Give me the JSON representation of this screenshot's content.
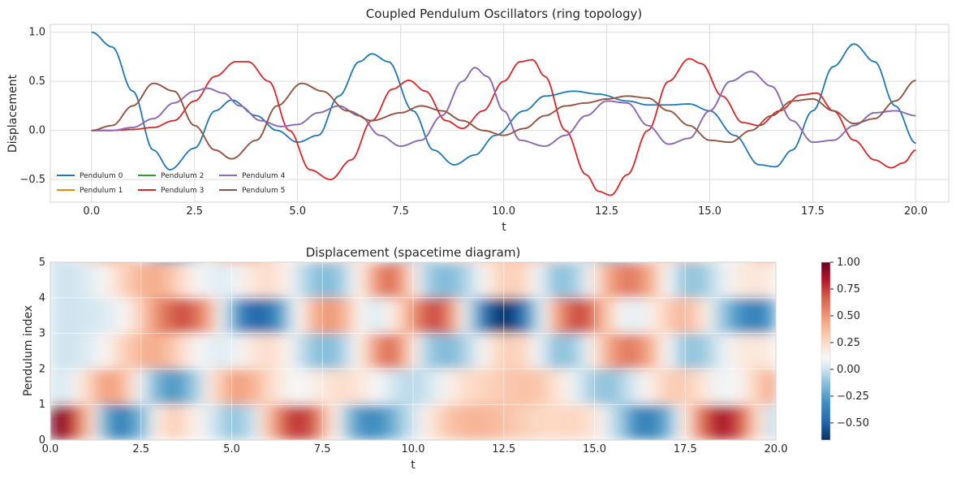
{
  "chart_data": [
    {
      "type": "line",
      "title": "Coupled Pendulum Oscillators (ring topology)",
      "xlabel": "t",
      "ylabel": "Displacement",
      "xlim": [
        -1.0,
        20.8
      ],
      "ylim": [
        -0.73,
        1.08
      ],
      "xticks": [
        0.0,
        2.5,
        5.0,
        7.5,
        10.0,
        12.5,
        15.0,
        17.5,
        20.0
      ],
      "xtick_labels": [
        "0.0",
        "2.5",
        "5.0",
        "7.5",
        "10.0",
        "12.5",
        "15.0",
        "17.5",
        "20.0"
      ],
      "yticks": [
        -0.5,
        0.0,
        0.5,
        1.0
      ],
      "ytick_labels": [
        "−0.5",
        "0.0",
        "0.5",
        "1.0"
      ],
      "grid": true,
      "legend_location": "bottom-left",
      "series": [
        {
          "name": "Pendulum 0",
          "color": "#1f77b4",
          "points": [
            [
              0,
              1.0
            ],
            [
              0.5,
              0.85
            ],
            [
              1.0,
              0.4
            ],
            [
              1.5,
              -0.2
            ],
            [
              1.9,
              -0.4
            ],
            [
              2.5,
              -0.18
            ],
            [
              3.0,
              0.2
            ],
            [
              3.4,
              0.31
            ],
            [
              4.0,
              0.15
            ],
            [
              4.5,
              0.0
            ],
            [
              5.0,
              -0.12
            ],
            [
              5.5,
              -0.05
            ],
            [
              6.0,
              0.35
            ],
            [
              6.5,
              0.7
            ],
            [
              6.8,
              0.78
            ],
            [
              7.2,
              0.7
            ],
            [
              7.8,
              0.2
            ],
            [
              8.3,
              -0.2
            ],
            [
              8.8,
              -0.35
            ],
            [
              9.3,
              -0.25
            ],
            [
              9.8,
              -0.05
            ],
            [
              10.5,
              0.2
            ],
            [
              11.0,
              0.35
            ],
            [
              11.7,
              0.4
            ],
            [
              12.3,
              0.37
            ],
            [
              13.0,
              0.3
            ],
            [
              13.5,
              0.26
            ],
            [
              14.0,
              0.26
            ],
            [
              14.5,
              0.27
            ],
            [
              15.0,
              0.2
            ],
            [
              15.6,
              -0.05
            ],
            [
              16.2,
              -0.35
            ],
            [
              16.6,
              -0.37
            ],
            [
              17.0,
              -0.2
            ],
            [
              17.5,
              0.2
            ],
            [
              18.0,
              0.65
            ],
            [
              18.5,
              0.88
            ],
            [
              19.0,
              0.7
            ],
            [
              19.5,
              0.25
            ],
            [
              20.0,
              -0.13
            ]
          ]
        },
        {
          "name": "Pendulum 1",
          "color": "#ff7f0e",
          "points": [
            [
              0,
              0.0
            ],
            [
              0.5,
              0.05
            ],
            [
              1.0,
              0.25
            ],
            [
              1.5,
              0.48
            ],
            [
              2.0,
              0.4
            ],
            [
              2.5,
              0.05
            ],
            [
              3.0,
              -0.2
            ],
            [
              3.4,
              -0.29
            ],
            [
              4.0,
              -0.1
            ],
            [
              4.5,
              0.25
            ],
            [
              5.1,
              0.48
            ],
            [
              5.6,
              0.4
            ],
            [
              6.2,
              0.2
            ],
            [
              6.8,
              0.1
            ],
            [
              7.5,
              0.18
            ],
            [
              8.0,
              0.25
            ],
            [
              8.5,
              0.2
            ],
            [
              9.0,
              0.1
            ],
            [
              9.5,
              0.0
            ],
            [
              10.0,
              -0.05
            ],
            [
              10.5,
              0.02
            ],
            [
              11.0,
              0.15
            ],
            [
              11.5,
              0.25
            ],
            [
              12.0,
              0.28
            ],
            [
              12.5,
              0.32
            ],
            [
              13.0,
              0.35
            ],
            [
              13.5,
              0.33
            ],
            [
              14.0,
              0.2
            ],
            [
              14.5,
              0.05
            ],
            [
              15.0,
              -0.1
            ],
            [
              15.5,
              -0.12
            ],
            [
              16.0,
              0.0
            ],
            [
              16.5,
              0.15
            ],
            [
              17.0,
              0.3
            ],
            [
              17.5,
              0.32
            ],
            [
              18.0,
              0.2
            ],
            [
              18.5,
              0.07
            ],
            [
              19.0,
              0.12
            ],
            [
              19.5,
              0.3
            ],
            [
              20.0,
              0.51
            ]
          ]
        },
        {
          "name": "Pendulum 2",
          "color": "#2ca02c",
          "points": [
            [
              0,
              0.0
            ],
            [
              0.5,
              0.0
            ],
            [
              1.0,
              0.03
            ],
            [
              1.5,
              0.12
            ],
            [
              2.0,
              0.28
            ],
            [
              2.5,
              0.4
            ],
            [
              2.8,
              0.43
            ],
            [
              3.2,
              0.38
            ],
            [
              3.6,
              0.25
            ],
            [
              4.1,
              0.1
            ],
            [
              4.6,
              0.04
            ],
            [
              5.0,
              0.06
            ],
            [
              5.5,
              0.18
            ],
            [
              6.0,
              0.25
            ],
            [
              6.5,
              0.15
            ],
            [
              7.0,
              -0.05
            ],
            [
              7.5,
              -0.16
            ],
            [
              8.0,
              -0.1
            ],
            [
              8.5,
              0.15
            ],
            [
              9.0,
              0.5
            ],
            [
              9.3,
              0.64
            ],
            [
              9.6,
              0.55
            ],
            [
              10.0,
              0.2
            ],
            [
              10.4,
              -0.1
            ],
            [
              11.0,
              -0.16
            ],
            [
              11.5,
              -0.05
            ],
            [
              12.0,
              0.15
            ],
            [
              12.5,
              0.3
            ],
            [
              13.0,
              0.28
            ],
            [
              13.5,
              0.05
            ],
            [
              14.0,
              -0.14
            ],
            [
              14.5,
              -0.08
            ],
            [
              15.0,
              0.2
            ],
            [
              15.5,
              0.5
            ],
            [
              16.0,
              0.6
            ],
            [
              16.5,
              0.45
            ],
            [
              17.0,
              0.1
            ],
            [
              17.5,
              -0.12
            ],
            [
              18.0,
              -0.1
            ],
            [
              18.5,
              0.05
            ],
            [
              19.0,
              0.18
            ],
            [
              19.5,
              0.2
            ],
            [
              20.0,
              0.15
            ]
          ]
        },
        {
          "name": "Pendulum 3",
          "color": "#d62728",
          "points": [
            [
              0,
              0.0
            ],
            [
              0.5,
              0.0
            ],
            [
              1.0,
              0.01
            ],
            [
              1.5,
              0.03
            ],
            [
              2.0,
              0.1
            ],
            [
              2.5,
              0.3
            ],
            [
              3.0,
              0.55
            ],
            [
              3.5,
              0.7
            ],
            [
              3.8,
              0.7
            ],
            [
              4.3,
              0.5
            ],
            [
              4.8,
              0.0
            ],
            [
              5.3,
              -0.4
            ],
            [
              5.8,
              -0.5
            ],
            [
              6.3,
              -0.3
            ],
            [
              6.8,
              0.1
            ],
            [
              7.3,
              0.42
            ],
            [
              7.7,
              0.51
            ],
            [
              8.1,
              0.4
            ],
            [
              8.6,
              0.1
            ],
            [
              9.0,
              0.02
            ],
            [
              9.5,
              0.2
            ],
            [
              10.0,
              0.5
            ],
            [
              10.4,
              0.7
            ],
            [
              10.7,
              0.72
            ],
            [
              11.0,
              0.55
            ],
            [
              11.5,
              0.0
            ],
            [
              12.0,
              -0.45
            ],
            [
              12.3,
              -0.62
            ],
            [
              12.6,
              -0.66
            ],
            [
              13.0,
              -0.45
            ],
            [
              13.5,
              0.0
            ],
            [
              14.0,
              0.5
            ],
            [
              14.5,
              0.73
            ],
            [
              14.8,
              0.68
            ],
            [
              15.3,
              0.35
            ],
            [
              15.8,
              0.08
            ],
            [
              16.2,
              0.05
            ],
            [
              16.7,
              0.2
            ],
            [
              17.2,
              0.36
            ],
            [
              17.6,
              0.38
            ],
            [
              18.0,
              0.2
            ],
            [
              18.5,
              -0.1
            ],
            [
              19.0,
              -0.3
            ],
            [
              19.4,
              -0.38
            ],
            [
              19.7,
              -0.33
            ],
            [
              20.0,
              -0.2
            ]
          ]
        },
        {
          "name": "Pendulum 4",
          "color": "#9467bd",
          "points": [
            [
              0,
              0.0
            ],
            [
              0.5,
              0.0
            ],
            [
              1.0,
              0.03
            ],
            [
              1.5,
              0.12
            ],
            [
              2.0,
              0.28
            ],
            [
              2.5,
              0.4
            ],
            [
              2.8,
              0.43
            ],
            [
              3.2,
              0.38
            ],
            [
              3.6,
              0.25
            ],
            [
              4.1,
              0.1
            ],
            [
              4.6,
              0.04
            ],
            [
              5.0,
              0.06
            ],
            [
              5.5,
              0.18
            ],
            [
              6.0,
              0.25
            ],
            [
              6.5,
              0.15
            ],
            [
              7.0,
              -0.05
            ],
            [
              7.5,
              -0.16
            ],
            [
              8.0,
              -0.1
            ],
            [
              8.5,
              0.15
            ],
            [
              9.0,
              0.5
            ],
            [
              9.3,
              0.64
            ],
            [
              9.6,
              0.55
            ],
            [
              10.0,
              0.2
            ],
            [
              10.4,
              -0.1
            ],
            [
              11.0,
              -0.16
            ],
            [
              11.5,
              -0.05
            ],
            [
              12.0,
              0.15
            ],
            [
              12.5,
              0.3
            ],
            [
              13.0,
              0.28
            ],
            [
              13.5,
              0.05
            ],
            [
              14.0,
              -0.14
            ],
            [
              14.5,
              -0.08
            ],
            [
              15.0,
              0.2
            ],
            [
              15.5,
              0.5
            ],
            [
              16.0,
              0.6
            ],
            [
              16.5,
              0.45
            ],
            [
              17.0,
              0.1
            ],
            [
              17.5,
              -0.12
            ],
            [
              18.0,
              -0.1
            ],
            [
              18.5,
              0.05
            ],
            [
              19.0,
              0.18
            ],
            [
              19.5,
              0.2
            ],
            [
              20.0,
              0.15
            ]
          ]
        },
        {
          "name": "Pendulum 5",
          "color": "#8c564b",
          "points": [
            [
              0,
              0.0
            ],
            [
              0.5,
              0.05
            ],
            [
              1.0,
              0.25
            ],
            [
              1.5,
              0.48
            ],
            [
              2.0,
              0.4
            ],
            [
              2.5,
              0.05
            ],
            [
              3.0,
              -0.2
            ],
            [
              3.4,
              -0.29
            ],
            [
              4.0,
              -0.1
            ],
            [
              4.5,
              0.25
            ],
            [
              5.1,
              0.48
            ],
            [
              5.6,
              0.4
            ],
            [
              6.2,
              0.2
            ],
            [
              6.8,
              0.1
            ],
            [
              7.5,
              0.18
            ],
            [
              8.0,
              0.25
            ],
            [
              8.5,
              0.2
            ],
            [
              9.0,
              0.1
            ],
            [
              9.5,
              0.0
            ],
            [
              10.0,
              -0.05
            ],
            [
              10.5,
              0.02
            ],
            [
              11.0,
              0.15
            ],
            [
              11.5,
              0.25
            ],
            [
              12.0,
              0.28
            ],
            [
              12.5,
              0.32
            ],
            [
              13.0,
              0.35
            ],
            [
              13.5,
              0.33
            ],
            [
              14.0,
              0.2
            ],
            [
              14.5,
              0.05
            ],
            [
              15.0,
              -0.1
            ],
            [
              15.5,
              -0.12
            ],
            [
              16.0,
              0.0
            ],
            [
              16.5,
              0.15
            ],
            [
              17.0,
              0.3
            ],
            [
              17.5,
              0.32
            ],
            [
              18.0,
              0.2
            ],
            [
              18.5,
              0.07
            ],
            [
              19.0,
              0.12
            ],
            [
              19.5,
              0.3
            ],
            [
              20.0,
              0.51
            ]
          ]
        }
      ]
    },
    {
      "type": "heatmap",
      "title": "Displacement (spacetime diagram)",
      "xlabel": "t",
      "ylabel": "Pendulum index",
      "xlim": [
        0,
        20
      ],
      "ylim": [
        0,
        5
      ],
      "xticks": [
        0.0,
        2.5,
        5.0,
        7.5,
        10.0,
        12.5,
        15.0,
        17.5,
        20.0
      ],
      "xtick_labels": [
        "0.0",
        "2.5",
        "5.0",
        "7.5",
        "10.0",
        "12.5",
        "15.0",
        "17.5",
        "20.0"
      ],
      "yticks": [
        0,
        1,
        2,
        3,
        4,
        5
      ],
      "ytick_labels": [
        "0",
        "1",
        "2",
        "3",
        "4",
        "5"
      ],
      "colormap": "RdBu_r",
      "color_range": [
        -0.66,
        1.0
      ],
      "colorbar_ticks": [
        1.0,
        0.75,
        0.5,
        0.25,
        0.0,
        -0.25,
        -0.5
      ],
      "colorbar_tick_labels": [
        "1.00",
        "0.75",
        "0.50",
        "0.25",
        "0.00",
        "−0.25",
        "−0.50"
      ],
      "rows_from": "series of the line chart, rows 0..5 = Pendulum 0..5"
    }
  ]
}
